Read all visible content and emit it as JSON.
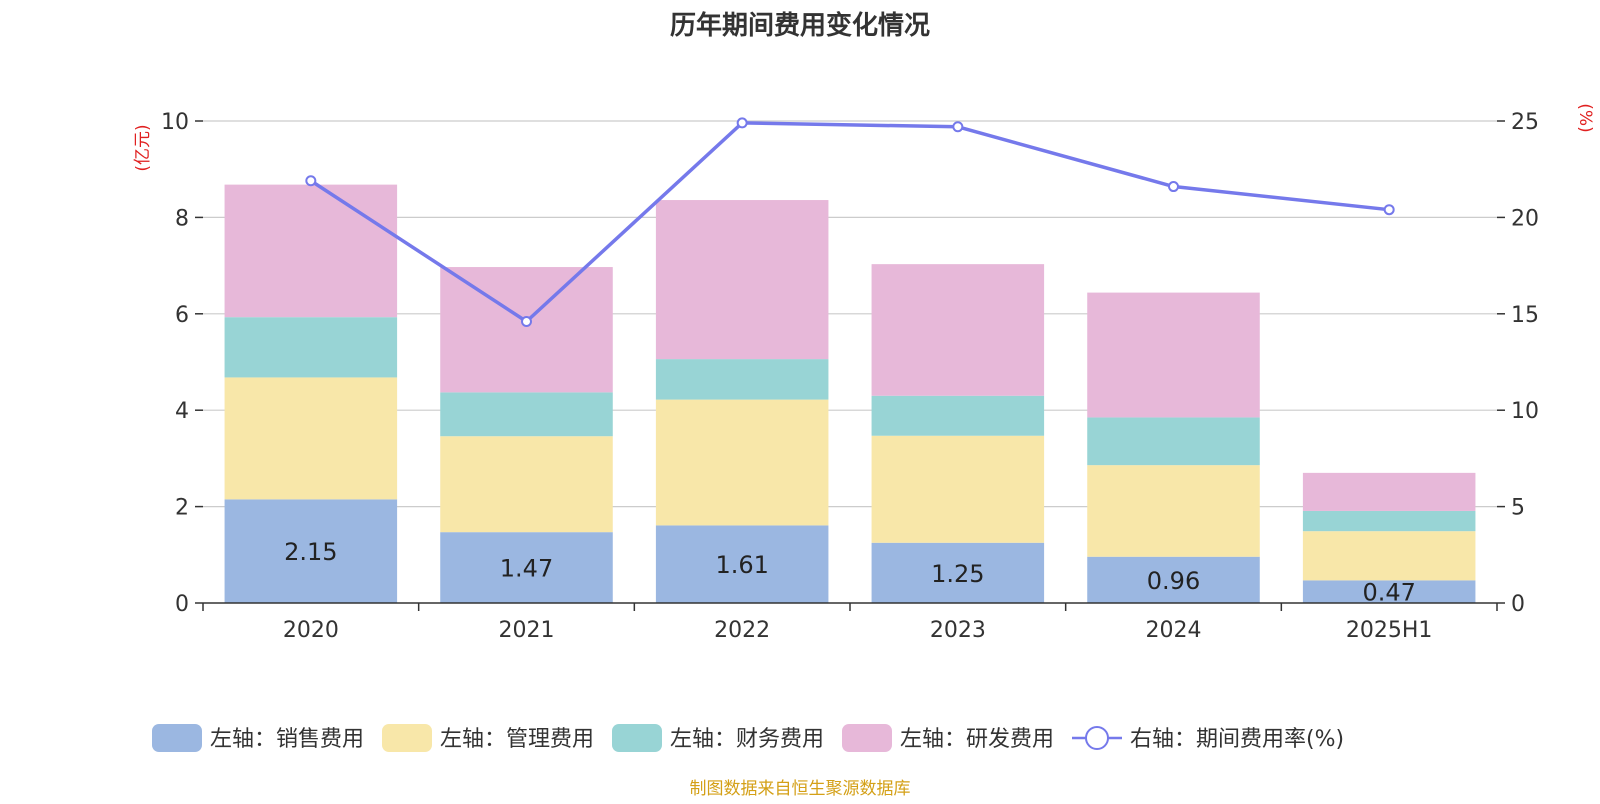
{
  "chart_data": {
    "type": "bar",
    "title": "历年期间费用变化情况",
    "y_left_unit": "(亿元)",
    "y_right_unit": "(%)",
    "categories": [
      "2020",
      "2021",
      "2022",
      "2023",
      "2024",
      "2025H1"
    ],
    "y_left_range": [
      0,
      10
    ],
    "y_left_ticks": [
      "0",
      "2",
      "4",
      "6",
      "8",
      "10"
    ],
    "y_right_range": [
      0,
      25
    ],
    "y_right_ticks": [
      "0",
      "5",
      "10",
      "15",
      "20",
      "25"
    ],
    "grid": true,
    "legend_position": "bottom",
    "series": [
      {
        "name": "左轴：销售费用",
        "type": "bar",
        "axis": "left",
        "color": "#9bb7e1",
        "values": [
          2.15,
          1.47,
          1.61,
          1.25,
          0.96,
          0.47
        ],
        "show_labels": true
      },
      {
        "name": "左轴：管理费用",
        "type": "bar",
        "axis": "left",
        "color": "#f8e7a9",
        "values": [
          2.53,
          1.99,
          2.61,
          2.22,
          1.9,
          1.02
        ]
      },
      {
        "name": "左轴：财务费用",
        "type": "bar",
        "axis": "left",
        "color": "#98d4d5",
        "values": [
          1.25,
          0.91,
          0.84,
          0.83,
          0.99,
          0.42
        ]
      },
      {
        "name": "左轴：研发费用",
        "type": "bar",
        "axis": "left",
        "color": "#e7b8d9",
        "values": [
          2.75,
          2.6,
          3.3,
          2.73,
          2.59,
          0.79
        ]
      },
      {
        "name": "右轴：期间费用率(%)",
        "type": "line",
        "axis": "right",
        "color": "#7579eb",
        "values": [
          21.9,
          14.6,
          24.9,
          24.7,
          21.6,
          20.4
        ]
      }
    ],
    "source_note": "制图数据来自恒生聚源数据库"
  }
}
